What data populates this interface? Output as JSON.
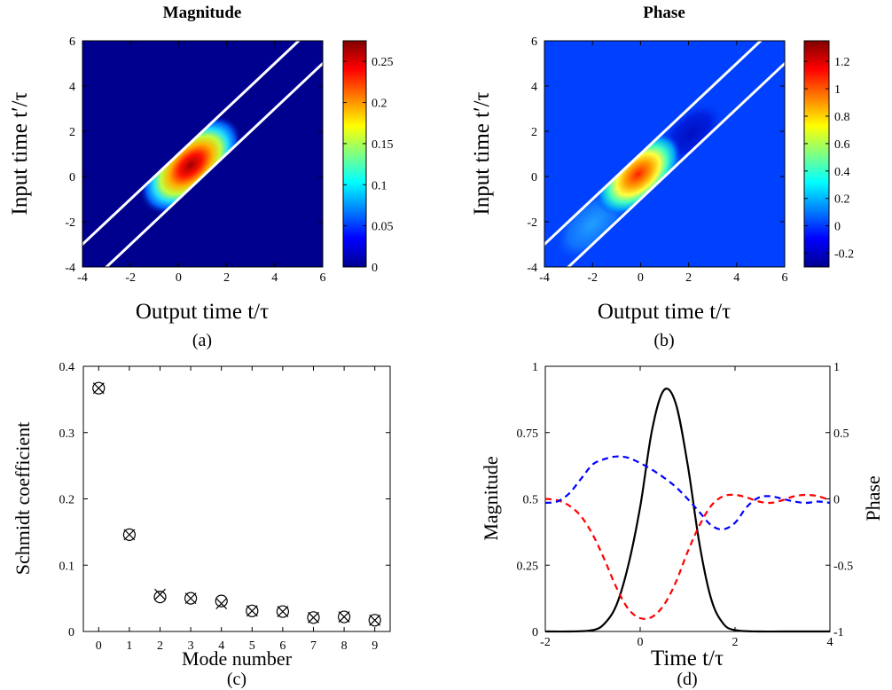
{
  "chart_data": [
    {
      "type": "heatmap",
      "panel_label": "(a)",
      "title": "Magnitude",
      "xlabel": "Output time t/τ",
      "ylabel": "Input time t′/τ",
      "xlim": [
        -4,
        6
      ],
      "ylim": [
        -4,
        6
      ],
      "xticks": [
        "-4",
        "-2",
        "0",
        "2",
        "4",
        "6"
      ],
      "yticks": [
        "-4",
        "-2",
        "0",
        "2",
        "4",
        "6"
      ],
      "colorbar": {
        "range": [
          0,
          0.275
        ],
        "ticks": [
          "0",
          "0.05",
          "0.1",
          "0.15",
          "0.2",
          "0.25"
        ],
        "tick_values": [
          0,
          0.05,
          0.1,
          0.15,
          0.2,
          0.25
        ]
      },
      "peak": {
        "x": 0.5,
        "y": 0.5,
        "value": 0.275
      },
      "band_lines": [
        {
          "x_at_y0": -1.0
        },
        {
          "x_at_y0": 1.0
        }
      ]
    },
    {
      "type": "heatmap",
      "panel_label": "(b)",
      "title": "Phase",
      "xlabel": "Output time t/τ",
      "ylabel": "Input time t′/τ",
      "xlim": [
        -4,
        6
      ],
      "ylim": [
        -4,
        6
      ],
      "xticks": [
        "-4",
        "-2",
        "0",
        "2",
        "4",
        "6"
      ],
      "yticks": [
        "-4",
        "-2",
        "0",
        "2",
        "4",
        "6"
      ],
      "colorbar": {
        "range": [
          -0.3,
          1.35
        ],
        "ticks": [
          "-0.2",
          "0",
          "0.2",
          "0.4",
          "0.6",
          "0.8",
          "1",
          "1.2"
        ],
        "tick_values": [
          -0.2,
          0,
          0.2,
          0.4,
          0.6,
          0.8,
          1.0,
          1.2
        ]
      },
      "band_lines": [
        {
          "x_at_y0": -1.0
        },
        {
          "x_at_y0": 1.0
        }
      ]
    },
    {
      "type": "scatter",
      "panel_label": "(c)",
      "xlabel": "Mode number",
      "ylabel": "Schmidt coefficient",
      "xlim": [
        -0.5,
        9.5
      ],
      "ylim": [
        0,
        0.4
      ],
      "xticks": [
        "0",
        "1",
        "2",
        "3",
        "4",
        "5",
        "6",
        "7",
        "8",
        "9"
      ],
      "yticks": [
        "0",
        "0.1",
        "0.2",
        "0.3",
        "0.4"
      ],
      "series": [
        {
          "marker": "circle",
          "x": [
            0,
            1,
            2,
            3,
            4,
            5,
            6,
            7,
            8,
            9
          ],
          "y": [
            0.367,
            0.146,
            0.052,
            0.05,
            0.046,
            0.031,
            0.03,
            0.021,
            0.022,
            0.017
          ]
        },
        {
          "marker": "cross",
          "x": [
            0,
            1,
            2,
            3,
            4,
            5,
            6,
            7,
            8,
            9
          ],
          "y": [
            0.367,
            0.146,
            0.056,
            0.05,
            0.042,
            0.031,
            0.03,
            0.021,
            0.022,
            0.017
          ]
        }
      ]
    },
    {
      "type": "line",
      "panel_label": "(d)",
      "xlabel": "Time t/τ",
      "ylabel": "Magnitude",
      "y2label": "Phase",
      "xlim": [
        -2,
        4
      ],
      "ylim": [
        0,
        1
      ],
      "y2lim": [
        -1,
        1
      ],
      "xticks": [
        "-2",
        "0",
        "2",
        "4"
      ],
      "yticks": [
        "0",
        "0.25",
        "0.5",
        "0.75",
        "1"
      ],
      "y2ticks": [
        "-1",
        "-0.5",
        "0",
        "0.5",
        "1"
      ],
      "series": [
        {
          "axis": "left",
          "color": "#000000",
          "style": "solid",
          "x": [
            -2,
            -1.5,
            -1,
            -0.75,
            -0.5,
            -0.25,
            0,
            0.25,
            0.5,
            0.75,
            1,
            1.25,
            1.5,
            1.75,
            2,
            2.5,
            3,
            4
          ],
          "y": [
            0,
            0,
            0.005,
            0.03,
            0.1,
            0.25,
            0.47,
            0.76,
            0.91,
            0.86,
            0.63,
            0.33,
            0.12,
            0.03,
            0.005,
            0,
            0,
            0
          ]
        },
        {
          "axis": "right",
          "color": "#ff0000",
          "style": "dashed",
          "x": [
            -2,
            -1.75,
            -1.5,
            -1.25,
            -1,
            -0.75,
            -0.5,
            -0.25,
            0,
            0.25,
            0.5,
            0.75,
            1,
            1.25,
            1.5,
            1.75,
            2,
            2.25,
            2.5,
            2.75,
            3,
            3.25,
            3.5,
            3.75,
            4
          ],
          "y": [
            0,
            -0.01,
            -0.05,
            -0.13,
            -0.27,
            -0.46,
            -0.67,
            -0.83,
            -0.9,
            -0.89,
            -0.8,
            -0.63,
            -0.4,
            -0.2,
            -0.05,
            0.02,
            0.03,
            0.01,
            -0.02,
            -0.03,
            -0.01,
            0.02,
            0.03,
            0.02,
            -0.01
          ]
        },
        {
          "axis": "right",
          "color": "#0000ff",
          "style": "dashed",
          "x": [
            -2,
            -1.75,
            -1.5,
            -1.25,
            -1,
            -0.75,
            -0.5,
            -0.25,
            0,
            0.25,
            0.5,
            0.75,
            1,
            1.25,
            1.5,
            1.75,
            2,
            2.25,
            2.5,
            2.75,
            3,
            3.25,
            3.5,
            3.75,
            4
          ],
          "y": [
            -0.03,
            -0.02,
            0.04,
            0.15,
            0.26,
            0.3,
            0.32,
            0.31,
            0.27,
            0.22,
            0.16,
            0.09,
            0.0,
            -0.1,
            -0.2,
            -0.23,
            -0.18,
            -0.06,
            0.01,
            0.02,
            0.0,
            -0.02,
            -0.03,
            -0.02,
            -0.03
          ]
        }
      ]
    }
  ]
}
